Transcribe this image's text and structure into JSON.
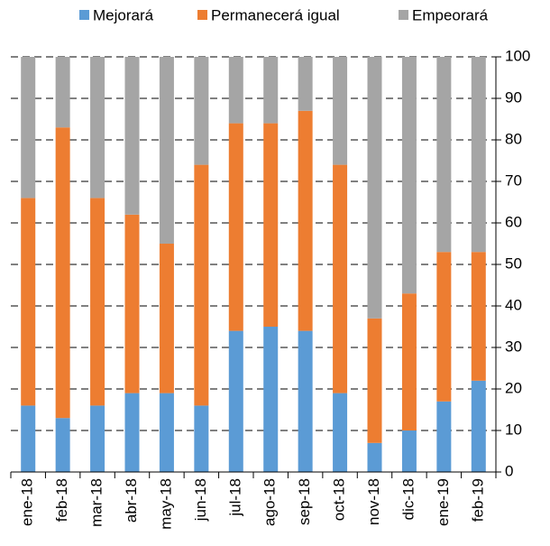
{
  "chart_data": {
    "type": "stacked_bar",
    "categories": [
      "ene-18",
      "feb-18",
      "mar-18",
      "abr-18",
      "may-18",
      "jun-18",
      "jul-18",
      "ago-18",
      "sep-18",
      "oct-18",
      "nov-18",
      "dic-18",
      "ene-19",
      "feb-19"
    ],
    "series": [
      {
        "name": "Mejorará",
        "color": "#5b9bd5",
        "values": [
          16,
          13,
          16,
          19,
          19,
          16,
          34,
          35,
          34,
          19,
          7,
          10,
          17,
          22
        ]
      },
      {
        "name": "Permanecerá igual",
        "color": "#ed7d31",
        "values": [
          50,
          70,
          50,
          43,
          36,
          58,
          50,
          49,
          53,
          55,
          30,
          33,
          36,
          31
        ]
      },
      {
        "name": "Empeorará",
        "color": "#a5a5a5",
        "values": [
          34,
          17,
          34,
          38,
          45,
          26,
          16,
          16,
          13,
          26,
          63,
          57,
          47,
          47
        ]
      }
    ],
    "ylim": [
      0,
      100
    ],
    "yticks": [
      0,
      10,
      20,
      30,
      40,
      50,
      60,
      70,
      80,
      90,
      100
    ],
    "grid": true,
    "legend": "top"
  }
}
